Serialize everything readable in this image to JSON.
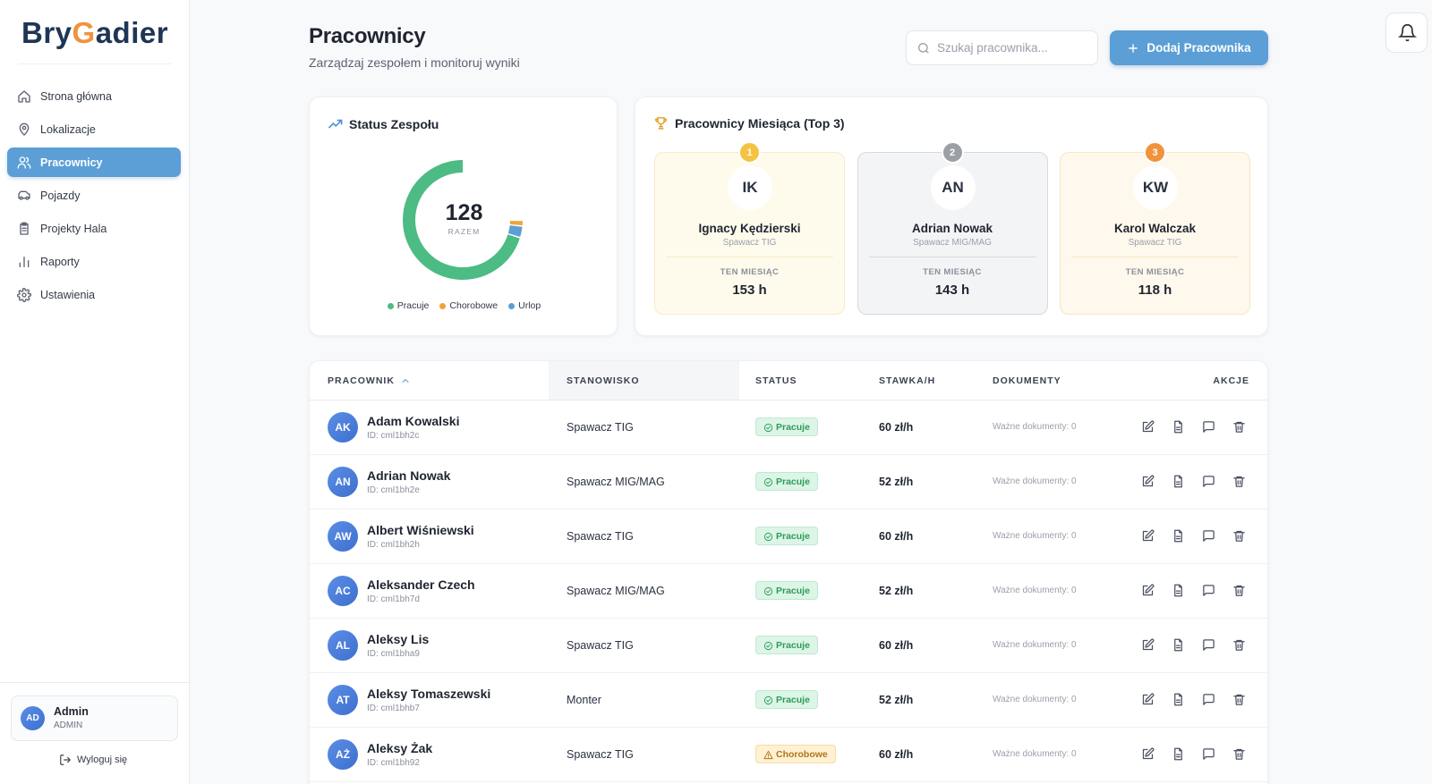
{
  "sidebar": {
    "logo": [
      "Bry",
      "G",
      "adier"
    ],
    "nav": [
      "Strona główna",
      "Lokalizacje",
      "Pracownicy",
      "Pojazdy",
      "Projekty Hala",
      "Raporty",
      "Ustawienia"
    ],
    "active": 2,
    "user": {
      "initials": "AD",
      "name": "Admin",
      "role": "ADMIN"
    },
    "logout": "Wyloguj się"
  },
  "header": {
    "title": "Pracownicy",
    "subtitle": "Zarządzaj zespołem i monitoruj wyniki",
    "search_placeholder": "Szukaj pracownika...",
    "add_button": "Dodaj Pracownika"
  },
  "status_card": {
    "title": "Status Zespołu",
    "total": 128,
    "total_label": "RAZEM",
    "segments": [
      {
        "name": "Pracuje",
        "color": "#4cbb84",
        "value": 122
      },
      {
        "name": "Chorobowe",
        "color": "#f0a33c",
        "value": 2
      },
      {
        "name": "Urlop",
        "color": "#5b9fd6",
        "value": 4
      }
    ]
  },
  "top3": {
    "title": "Pracownicy Miesiąca (Top 3)",
    "month_label": "TEN MIESIĄC",
    "people": [
      {
        "rank": 1,
        "initials": "IK",
        "name": "Ignacy Kędzierski",
        "position": "Spawacz TIG",
        "hours": "153 h"
      },
      {
        "rank": 2,
        "initials": "AN",
        "name": "Adrian Nowak",
        "position": "Spawacz MIG/MAG",
        "hours": "143 h"
      },
      {
        "rank": 3,
        "initials": "KW",
        "name": "Karol Walczak",
        "position": "Spawacz TIG",
        "hours": "118 h"
      }
    ]
  },
  "table": {
    "columns": [
      "PRACOWNIK",
      "STANOWISKO",
      "STATUS",
      "STAWKA/H",
      "DOKUMENTY",
      "AKCJE"
    ],
    "rows": [
      {
        "initials": "AK",
        "name": "Adam Kowalski",
        "id": "ID: cml1bh2c",
        "position": "Spawacz TIG",
        "status": "Pracuje",
        "rate": "60 zł/h",
        "documents": "Ważne dokumenty: 0"
      },
      {
        "initials": "AN",
        "name": "Adrian Nowak",
        "id": "ID: cml1bh2e",
        "position": "Spawacz MIG/MAG",
        "status": "Pracuje",
        "rate": "52 zł/h",
        "documents": "Ważne dokumenty: 0"
      },
      {
        "initials": "AW",
        "name": "Albert Wiśniewski",
        "id": "ID: cml1bh2h",
        "position": "Spawacz TIG",
        "status": "Pracuje",
        "rate": "60 zł/h",
        "documents": "Ważne dokumenty: 0"
      },
      {
        "initials": "AC",
        "name": "Aleksander Czech",
        "id": "ID: cml1bh7d",
        "position": "Spawacz MIG/MAG",
        "status": "Pracuje",
        "rate": "52 zł/h",
        "documents": "Ważne dokumenty: 0"
      },
      {
        "initials": "AL",
        "name": "Aleksy Lis",
        "id": "ID: cml1bha9",
        "position": "Spawacz TIG",
        "status": "Pracuje",
        "rate": "60 zł/h",
        "documents": "Ważne dokumenty: 0"
      },
      {
        "initials": "AT",
        "name": "Aleksy Tomaszewski",
        "id": "ID: cml1bhb7",
        "position": "Monter",
        "status": "Pracuje",
        "rate": "52 zł/h",
        "documents": "Ważne dokumenty: 0"
      },
      {
        "initials": "AŻ",
        "name": "Aleksy Żak",
        "id": "ID: cml1bh92",
        "position": "Spawacz TIG",
        "status": "Chorobowe",
        "rate": "60 zł/h",
        "documents": "Ważne dokumenty: 0"
      }
    ]
  }
}
